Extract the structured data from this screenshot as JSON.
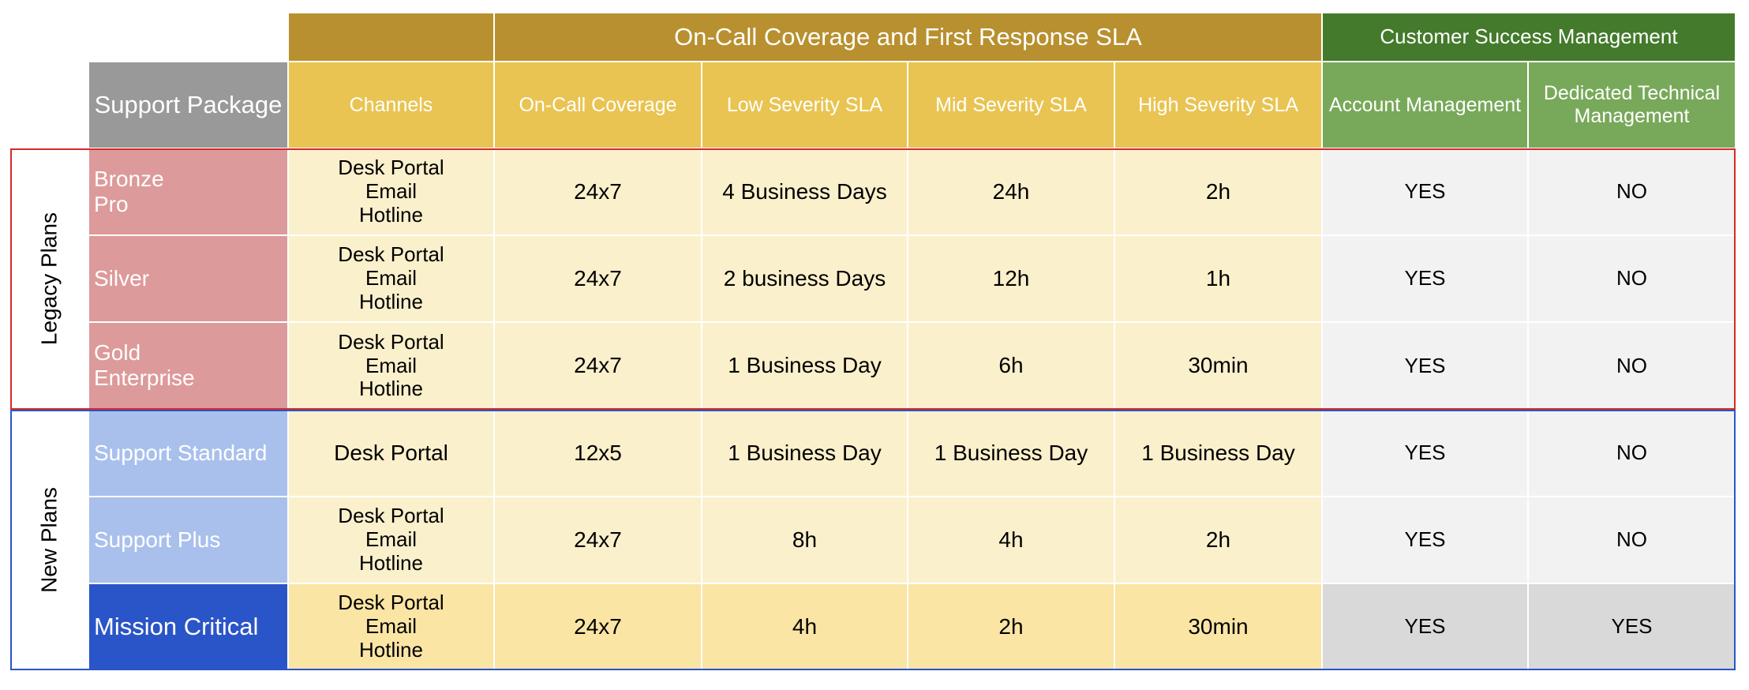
{
  "header": {
    "sla_title": "On-Call Coverage and First Response SLA",
    "csm_title": "Customer Success Management",
    "columns": [
      "Support Package",
      "Channels",
      "On-Call Coverage",
      "Low Severity SLA",
      "Mid Severity SLA",
      "High Severity SLA",
      "Account Management",
      "Dedicated Technical Management"
    ]
  },
  "groups": [
    {
      "label": "Legacy Plans",
      "rows": [
        [
          "Bronze\nPro",
          "Desk Portal\nEmail\nHotline",
          "24x7",
          "4 Business Days",
          "24h",
          "2h",
          "YES",
          "NO"
        ],
        [
          "Silver",
          "Desk Portal\nEmail\nHotline",
          "24x7",
          "2 business Days",
          "12h",
          "1h",
          "YES",
          "NO"
        ],
        [
          "Gold\nEnterprise",
          "Desk Portal\nEmail\nHotline",
          "24x7",
          "1 Business Day",
          "6h",
          "30min",
          "YES",
          "NO"
        ]
      ]
    },
    {
      "label": "New Plans",
      "rows": [
        [
          "Support Standard",
          "Desk Portal",
          "12x5",
          "1 Business Day",
          "1 Business Day",
          "1 Business Day",
          "YES",
          "NO"
        ],
        [
          "Support Plus",
          "Desk Portal\nEmail\nHotline",
          "24x7",
          "8h",
          "4h",
          "2h",
          "YES",
          "NO"
        ],
        [
          "Mission Critical",
          "Desk Portal\nEmail\nHotline",
          "24x7",
          "4h",
          "2h",
          "30min",
          "YES",
          "YES"
        ]
      ]
    }
  ]
}
